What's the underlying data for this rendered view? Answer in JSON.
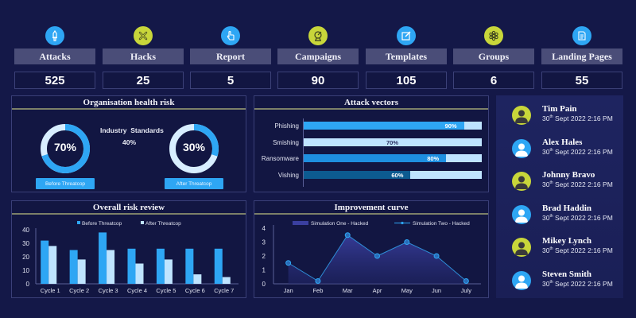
{
  "kpis": [
    {
      "label": "Attacks",
      "value": "525",
      "icon": "sword-icon",
      "color": "#2ea6f4"
    },
    {
      "label": "Hacks",
      "value": "25",
      "icon": "cross-icon",
      "color": "#c8d63a"
    },
    {
      "label": "Report",
      "value": "5",
      "icon": "pointer-hand-icon",
      "color": "#2ea6f4"
    },
    {
      "label": "Campaigns",
      "value": "90",
      "icon": "target-icon",
      "color": "#c8d63a"
    },
    {
      "label": "Templates",
      "value": "105",
      "icon": "edit-icon",
      "color": "#2ea6f4"
    },
    {
      "label": "Groups",
      "value": "6",
      "icon": "network-icon",
      "color": "#c8d63a"
    },
    {
      "label": "Landing Pages",
      "value": "55",
      "icon": "document-icon",
      "color": "#2ea6f4"
    }
  ],
  "health": {
    "title": "Organisation health risk",
    "industry_label": "Industry  Standards",
    "industry_value": "40%",
    "before": {
      "value": 70,
      "label": "70%",
      "button": "Before Threatcop"
    },
    "after": {
      "value": 30,
      "label": "30%",
      "button": "After Threatcop"
    }
  },
  "vectors": {
    "title": "Attack vectors",
    "items": [
      {
        "name": "Phishing",
        "value": 90,
        "label": "90%",
        "color": "#2ea6f4"
      },
      {
        "name": "Smishing",
        "value": 70,
        "label": "70%",
        "color": "#bfe4ff"
      },
      {
        "name": "Ransomware",
        "value": 80,
        "label": "80%",
        "color": "#1e8fe0"
      },
      {
        "name": "Vishing",
        "value": 60,
        "label": "60%",
        "color": "#0c5a90"
      }
    ]
  },
  "chart_data": [
    {
      "type": "bar",
      "title": "Overall risk review",
      "categories": [
        "Cycle 1",
        "Cycle 2",
        "Cycle 3",
        "Cycle 4",
        "Cycle 5",
        "Cycle 6",
        "Cycle 7"
      ],
      "series": [
        {
          "name": "Before Threatcop",
          "values": [
            32,
            25,
            38,
            26,
            26,
            26,
            26
          ],
          "color": "#2ea6f4"
        },
        {
          "name": "After Threatcop",
          "values": [
            28,
            18,
            25,
            15,
            18,
            7,
            5
          ],
          "color": "#bfe4ff"
        }
      ],
      "ylim": [
        0,
        40
      ],
      "yticks": [
        0,
        10,
        20,
        30,
        40
      ],
      "legend": "top"
    },
    {
      "type": "line",
      "title": "Improvement curve",
      "categories": [
        "Jan",
        "Feb",
        "Mar",
        "Apr",
        "May",
        "Jun",
        "July"
      ],
      "series": [
        {
          "name": "Simulation One - Hacked",
          "kind": "area",
          "values": [
            1.5,
            0.2,
            3.5,
            2,
            3,
            2,
            0.2
          ]
        },
        {
          "name": "Simulation Two - Hacked",
          "kind": "line",
          "values": [
            1.5,
            0.2,
            3.5,
            2,
            3,
            2,
            0.2
          ]
        }
      ],
      "ylim": [
        0,
        4
      ],
      "yticks": [
        0,
        1,
        2,
        3,
        4
      ],
      "legend": "top"
    }
  ],
  "users": [
    {
      "name": "Tim Pain",
      "day": "30",
      "suffix": "th",
      "time": " Sept 2022 2:16 PM",
      "avatar_color": "#c8d63a"
    },
    {
      "name": "Alex Hales",
      "day": "30",
      "suffix": "th",
      "time": " Sept 2022 2:16 PM",
      "avatar_color": "#2ea6f4"
    },
    {
      "name": "Johnny Bravo",
      "day": "30",
      "suffix": "th",
      "time": " Sept 2022 2:16 PM",
      "avatar_color": "#c8d63a"
    },
    {
      "name": "Brad Haddin",
      "day": "30",
      "suffix": "th",
      "time": " Sept 2022 2:16 PM",
      "avatar_color": "#2ea6f4"
    },
    {
      "name": "Mikey Lynch",
      "day": "30",
      "suffix": "th",
      "time": " Sept 2022 2:16 PM",
      "avatar_color": "#c8d63a"
    },
    {
      "name": "Steven Smith",
      "day": "30",
      "suffix": "th",
      "time": " Sept 2022 2:16 PM",
      "avatar_color": "#2ea6f4"
    }
  ]
}
